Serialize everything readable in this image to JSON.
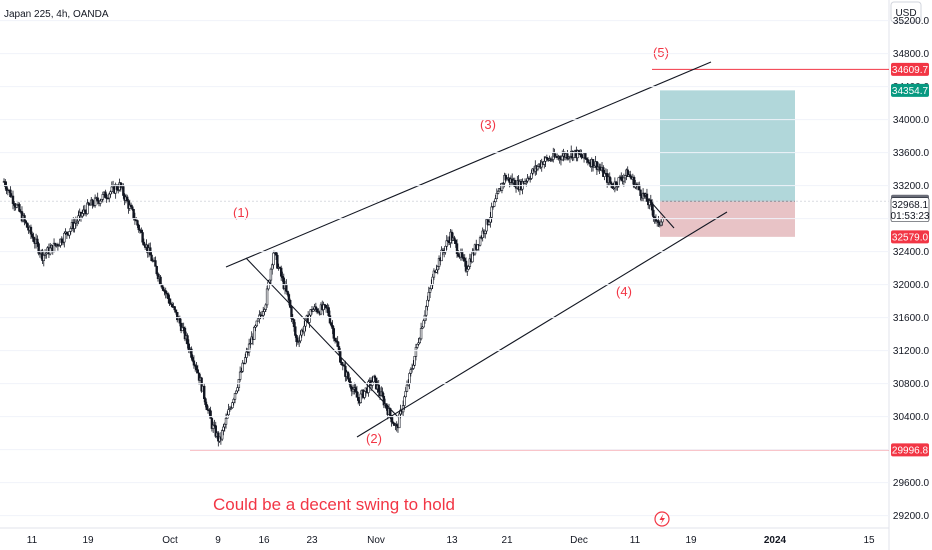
{
  "header": {
    "title": "Japan 225, 4h, OANDA",
    "currency": "USD"
  },
  "colors": {
    "candle": "#131722",
    "trendline": "#131722",
    "level": "#f23645",
    "wave_label": "#f23645",
    "annotation": "#f23645",
    "target_zone": "#a8d3d6",
    "stop_zone": "#e6bcc0",
    "price_badge_red": "#f23645",
    "price_badge_teal": "#089981",
    "price_badge_gray": "#6a6d78"
  },
  "annotation": "Could be a decent swing to hold",
  "wave_labels": [
    "(1)",
    "(2)",
    "(3)",
    "(4)",
    "(5)"
  ],
  "chart_data": {
    "type": "candlestick",
    "instrument": "Japan 225",
    "interval": "4h",
    "source": "OANDA",
    "currency": "USD",
    "ylim": [
      29050,
      35450
    ],
    "y_ticks": [
      35200,
      34800,
      34400,
      34000,
      33600,
      33200,
      32800,
      32400,
      32000,
      31600,
      31200,
      30800,
      30400,
      30000,
      29600,
      29200
    ],
    "x_ticks": [
      "11",
      "19",
      "Oct",
      "9",
      "16",
      "23",
      "Nov",
      "13",
      "21",
      "Dec",
      "11",
      "19",
      "2024",
      "15"
    ],
    "price_labels": {
      "target_line": "34609.7",
      "take_profit": "34354.7",
      "entry": "33010.9",
      "last": "32968.1",
      "countdown": "01:53:23",
      "stop_loss": "32579.0",
      "support_line": "29996.8"
    },
    "position": {
      "entry": 33010.9,
      "take_profit": 34354.7,
      "stop_loss": 32579.0
    },
    "path_points": [
      [
        "Sep 11",
        33250
      ],
      [
        "Sep 14",
        32700
      ],
      [
        "Sep 16",
        32350
      ],
      [
        "Sep 18",
        32500
      ],
      [
        "Sep 22",
        32950
      ],
      [
        "Sep 26",
        33200
      ],
      [
        "Sep 28",
        32800
      ],
      [
        "Oct 2",
        31900
      ],
      [
        "Oct 4",
        31500
      ],
      [
        "Oct 6",
        31000
      ],
      [
        "Oct 8",
        30300
      ],
      [
        "Oct 9",
        30100
      ],
      [
        "Oct 11",
        30700
      ],
      [
        "Oct 13",
        31300
      ],
      [
        "Oct 15",
        31800
      ],
      [
        "Oct 16",
        32400
      ],
      [
        "Oct 18",
        31800
      ],
      [
        "Oct 19",
        31300
      ],
      [
        "Oct 21",
        31700
      ],
      [
        "Oct 23",
        31700
      ],
      [
        "Oct 25",
        31000
      ],
      [
        "Oct 27",
        30600
      ],
      [
        "Oct 29",
        30850
      ],
      [
        "Oct 31",
        30450
      ],
      [
        "Nov 1",
        30250
      ],
      [
        "Nov 3",
        31000
      ],
      [
        "Nov 6",
        32200
      ],
      [
        "Nov 8",
        32600
      ],
      [
        "Nov 10",
        32200
      ],
      [
        "Nov 13",
        32800
      ],
      [
        "Nov 15",
        33300
      ],
      [
        "Nov 17",
        33200
      ],
      [
        "Nov 20",
        33500
      ],
      [
        "Nov 22",
        33550
      ],
      [
        "Nov 24",
        33600
      ],
      [
        "Nov 27",
        33450
      ],
      [
        "Nov 29",
        33200
      ],
      [
        "Dec 1",
        33350
      ],
      [
        "Dec 4",
        32950
      ],
      [
        "Dec 5",
        32700
      ],
      [
        "Dec 7",
        33300
      ],
      [
        "Dec 8",
        32650
      ],
      [
        "Dec 9",
        32100
      ],
      [
        "Dec 10",
        32300
      ],
      [
        "Dec 11",
        32800
      ],
      [
        "Dec 13",
        33200
      ],
      [
        "Dec 15",
        32850
      ],
      [
        "Dec 16",
        32968
      ]
    ],
    "levels": [
      {
        "name": "target-line",
        "price": 34609.7
      },
      {
        "name": "support-line",
        "price": 29996.8
      }
    ]
  }
}
